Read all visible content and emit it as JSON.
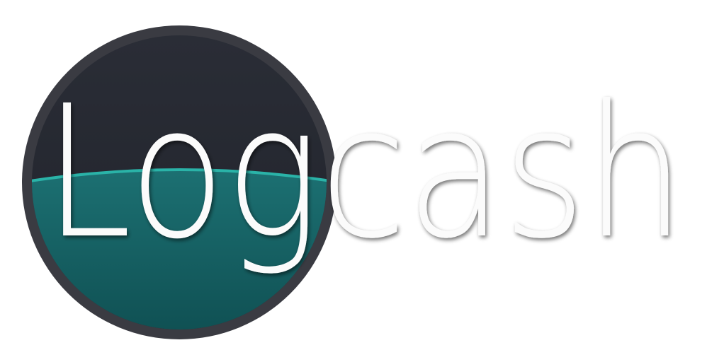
{
  "logo": {
    "text": "Logcash",
    "colors": {
      "ring": "#3a3b42",
      "upper": "#23262f",
      "liquid": "#155e60",
      "liquid_edge": "#2ab3a8",
      "text": "#fbfbfb",
      "text_shadow": "#7a7a7a"
    },
    "icon": "liquid-circle-icon"
  }
}
